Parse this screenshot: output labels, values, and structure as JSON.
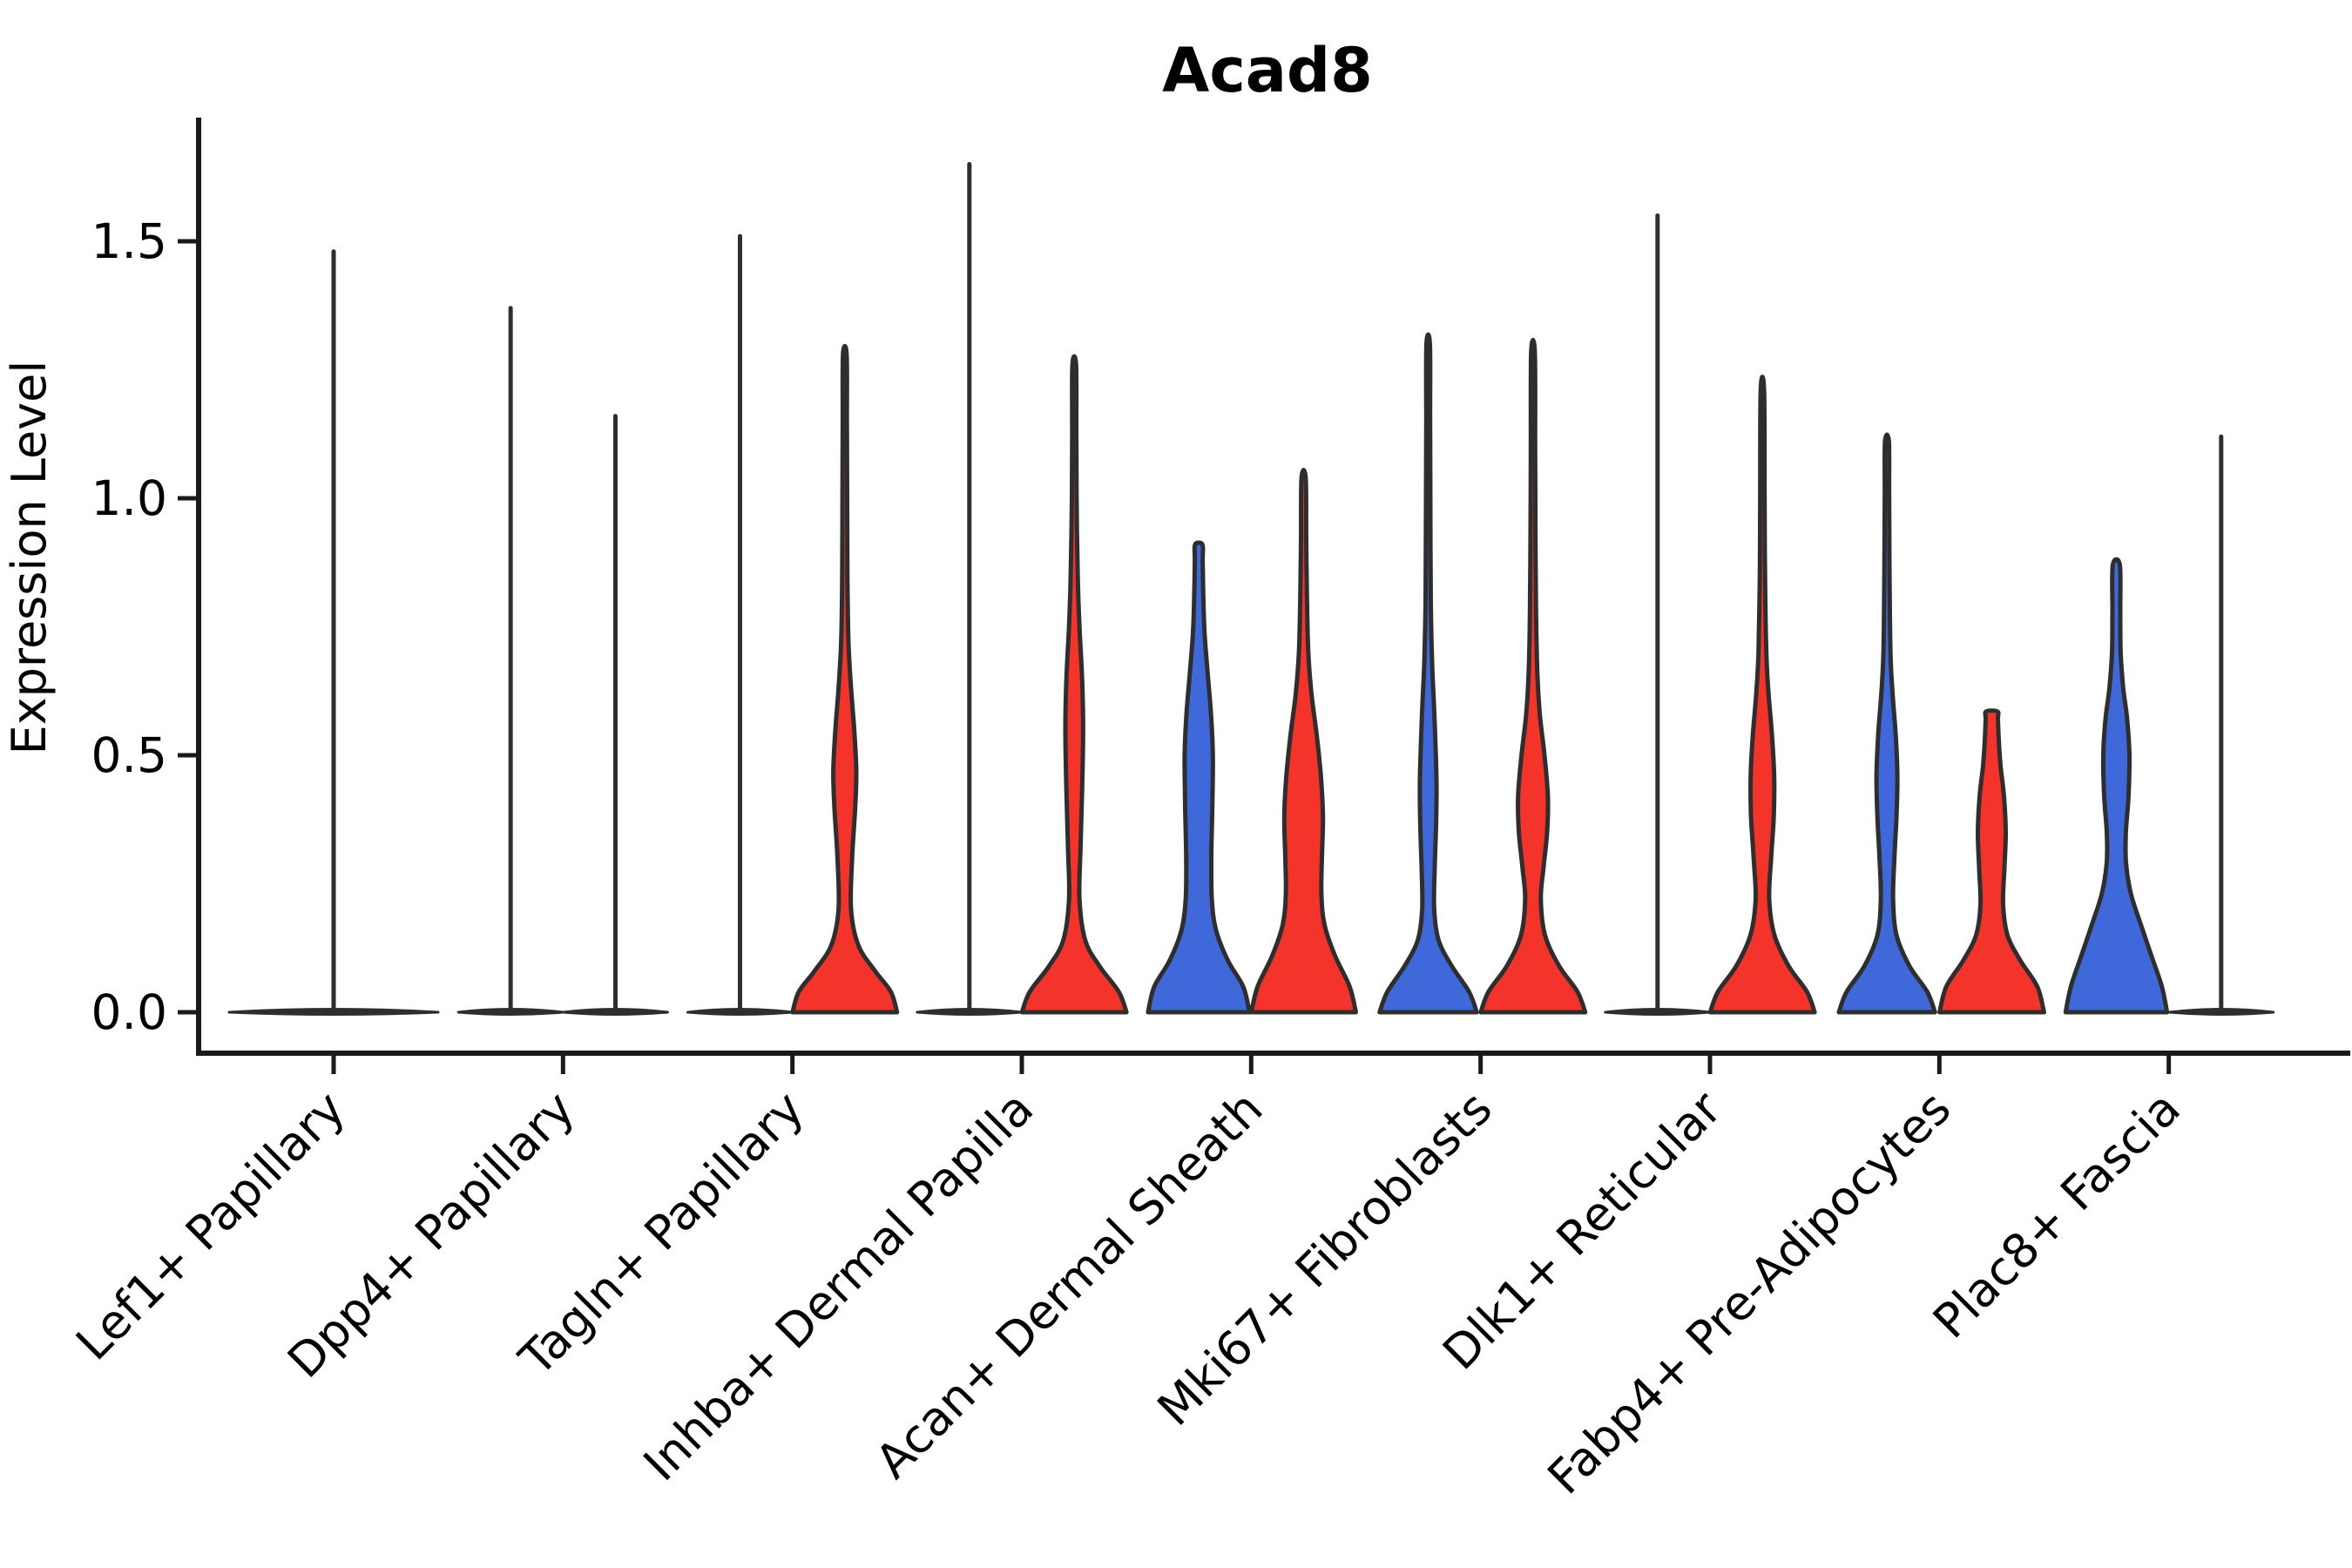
{
  "title": "Acad8",
  "y_axis": {
    "label": "Expression Level",
    "ticks": [
      "0.0",
      "0.5",
      "1.0",
      "1.5"
    ],
    "tick_values": [
      0.0,
      0.5,
      1.0,
      1.5
    ]
  },
  "colors": {
    "red": "#F4332B",
    "blue": "#3F69DB",
    "outline": "#2E2E2E",
    "axis": "#1A1A1A",
    "text": "#000000"
  },
  "chart_data": {
    "type": "violin",
    "title": "Acad8",
    "xlabel": "",
    "ylabel": "Expression Level",
    "ylim": [
      -0.08,
      1.75
    ],
    "grid": false,
    "legend_position": "none",
    "categories": [
      "Lef1+ Papillary",
      "Dpp4+ Papillary",
      "Tagln+ Papillary",
      "Inhba+ Dermal Papilla",
      "Acan+ Dermal Sheath",
      "Mki67+ Fibroblasts",
      "Dlk1+ Reticular",
      "Fabp4+ Pre-Adipocytes",
      "Plac8+ Fascia"
    ],
    "violins": [
      {
        "cat": 0,
        "side": "full",
        "fill": "flat",
        "max_expression": 1.48,
        "lens_halfwidth": 2.0
      },
      {
        "cat": 1,
        "side": "left",
        "fill": "flat",
        "max_expression": 1.37,
        "lens_halfwidth": 1.0
      },
      {
        "cat": 1,
        "side": "right",
        "fill": "flat",
        "max_expression": 1.16,
        "lens_halfwidth": 1.0
      },
      {
        "cat": 2,
        "side": "left",
        "fill": "flat",
        "max_expression": 1.51,
        "lens_halfwidth": 1.0
      },
      {
        "cat": 2,
        "side": "right",
        "fill": "red",
        "max_expression": 1.28,
        "profile": [
          [
            0,
            1.0
          ],
          [
            0.04,
            0.88
          ],
          [
            0.08,
            0.58
          ],
          [
            0.13,
            0.26
          ],
          [
            0.2,
            0.12
          ],
          [
            0.3,
            0.14
          ],
          [
            0.4,
            0.2
          ],
          [
            0.47,
            0.22
          ],
          [
            0.55,
            0.18
          ],
          [
            0.63,
            0.12
          ],
          [
            0.72,
            0.07
          ],
          [
            0.85,
            0.05
          ],
          [
            1.0,
            0.045
          ],
          [
            1.15,
            0.04
          ],
          [
            1.28,
            0.035
          ]
        ]
      },
      {
        "cat": 3,
        "side": "left",
        "fill": "flat",
        "max_expression": 1.65,
        "lens_halfwidth": 1.0
      },
      {
        "cat": 3,
        "side": "right",
        "fill": "red",
        "max_expression": 1.26,
        "profile": [
          [
            0,
            1.0
          ],
          [
            0.04,
            0.85
          ],
          [
            0.09,
            0.48
          ],
          [
            0.14,
            0.21
          ],
          [
            0.22,
            0.1
          ],
          [
            0.32,
            0.12
          ],
          [
            0.43,
            0.15
          ],
          [
            0.55,
            0.17
          ],
          [
            0.65,
            0.15
          ],
          [
            0.75,
            0.1
          ],
          [
            0.85,
            0.067
          ],
          [
            1.0,
            0.045
          ],
          [
            1.13,
            0.04
          ],
          [
            1.26,
            0.035
          ]
        ]
      },
      {
        "cat": 4,
        "side": "left",
        "fill": "blue",
        "max_expression": 0.91,
        "profile": [
          [
            0,
            0.97
          ],
          [
            0.05,
            0.85
          ],
          [
            0.1,
            0.56
          ],
          [
            0.16,
            0.33
          ],
          [
            0.22,
            0.25
          ],
          [
            0.3,
            0.24
          ],
          [
            0.4,
            0.26
          ],
          [
            0.5,
            0.27
          ],
          [
            0.58,
            0.235
          ],
          [
            0.66,
            0.17
          ],
          [
            0.74,
            0.11
          ],
          [
            0.82,
            0.085
          ],
          [
            0.88,
            0.075
          ],
          [
            0.91,
            0.07
          ]
        ]
      },
      {
        "cat": 4,
        "side": "right",
        "fill": "red",
        "max_expression": 1.04,
        "profile": [
          [
            0,
            1.0
          ],
          [
            0.05,
            0.88
          ],
          [
            0.11,
            0.6
          ],
          [
            0.17,
            0.4
          ],
          [
            0.23,
            0.34
          ],
          [
            0.3,
            0.35
          ],
          [
            0.38,
            0.37
          ],
          [
            0.46,
            0.33
          ],
          [
            0.54,
            0.25
          ],
          [
            0.62,
            0.15
          ],
          [
            0.7,
            0.09
          ],
          [
            0.8,
            0.065
          ],
          [
            0.92,
            0.05
          ],
          [
            1.04,
            0.04
          ]
        ]
      },
      {
        "cat": 5,
        "side": "left",
        "fill": "blue",
        "max_expression": 1.3,
        "profile": [
          [
            0,
            0.93
          ],
          [
            0.04,
            0.78
          ],
          [
            0.09,
            0.45
          ],
          [
            0.14,
            0.2
          ],
          [
            0.2,
            0.115
          ],
          [
            0.28,
            0.125
          ],
          [
            0.36,
            0.15
          ],
          [
            0.44,
            0.16
          ],
          [
            0.52,
            0.14
          ],
          [
            0.6,
            0.11
          ],
          [
            0.68,
            0.075
          ],
          [
            0.8,
            0.05
          ],
          [
            1.0,
            0.042
          ],
          [
            1.15,
            0.037
          ],
          [
            1.3,
            0.033
          ]
        ]
      },
      {
        "cat": 5,
        "side": "right",
        "fill": "red",
        "max_expression": 1.285,
        "profile": [
          [
            0,
            1.0
          ],
          [
            0.04,
            0.85
          ],
          [
            0.09,
            0.5
          ],
          [
            0.15,
            0.23
          ],
          [
            0.22,
            0.15
          ],
          [
            0.28,
            0.2
          ],
          [
            0.35,
            0.27
          ],
          [
            0.42,
            0.285
          ],
          [
            0.5,
            0.22
          ],
          [
            0.58,
            0.13
          ],
          [
            0.66,
            0.083
          ],
          [
            0.78,
            0.058
          ],
          [
            0.95,
            0.047
          ],
          [
            1.1,
            0.042
          ],
          [
            1.285,
            0.035
          ]
        ]
      },
      {
        "cat": 6,
        "side": "left",
        "fill": "flat",
        "max_expression": 1.55,
        "lens_halfwidth": 1.0
      },
      {
        "cat": 6,
        "side": "right",
        "fill": "red",
        "max_expression": 1.21,
        "profile": [
          [
            0,
            1.0
          ],
          [
            0.04,
            0.85
          ],
          [
            0.09,
            0.5
          ],
          [
            0.15,
            0.23
          ],
          [
            0.22,
            0.13
          ],
          [
            0.3,
            0.167
          ],
          [
            0.38,
            0.217
          ],
          [
            0.46,
            0.225
          ],
          [
            0.54,
            0.183
          ],
          [
            0.62,
            0.117
          ],
          [
            0.7,
            0.075
          ],
          [
            0.85,
            0.05
          ],
          [
            1.0,
            0.042
          ],
          [
            1.21,
            0.033
          ]
        ]
      },
      {
        "cat": 7,
        "side": "left",
        "fill": "blue",
        "max_expression": 1.11,
        "profile": [
          [
            0,
            0.92
          ],
          [
            0.04,
            0.77
          ],
          [
            0.09,
            0.43
          ],
          [
            0.15,
            0.183
          ],
          [
            0.22,
            0.117
          ],
          [
            0.3,
            0.142
          ],
          [
            0.38,
            0.183
          ],
          [
            0.46,
            0.2
          ],
          [
            0.54,
            0.167
          ],
          [
            0.62,
            0.108
          ],
          [
            0.7,
            0.067
          ],
          [
            0.85,
            0.05
          ],
          [
            1.0,
            0.042
          ],
          [
            1.11,
            0.037
          ]
        ]
      },
      {
        "cat": 7,
        "side": "right",
        "fill": "red",
        "max_expression": 0.585,
        "profile": [
          [
            0,
            1.0
          ],
          [
            0.05,
            0.87
          ],
          [
            0.1,
            0.55
          ],
          [
            0.15,
            0.3
          ],
          [
            0.21,
            0.217
          ],
          [
            0.28,
            0.242
          ],
          [
            0.35,
            0.267
          ],
          [
            0.42,
            0.233
          ],
          [
            0.48,
            0.167
          ],
          [
            0.53,
            0.133
          ],
          [
            0.57,
            0.117
          ],
          [
            0.585,
            0.108
          ]
        ]
      },
      {
        "cat": 8,
        "side": "left",
        "fill": "blue",
        "max_expression": 0.87,
        "profile": [
          [
            0,
            0.97
          ],
          [
            0.05,
            0.87
          ],
          [
            0.11,
            0.67
          ],
          [
            0.17,
            0.47
          ],
          [
            0.23,
            0.28
          ],
          [
            0.29,
            0.185
          ],
          [
            0.35,
            0.183
          ],
          [
            0.42,
            0.233
          ],
          [
            0.5,
            0.25
          ],
          [
            0.57,
            0.208
          ],
          [
            0.63,
            0.133
          ],
          [
            0.7,
            0.083
          ],
          [
            0.78,
            0.075
          ],
          [
            0.87,
            0.067
          ]
        ]
      },
      {
        "cat": 8,
        "side": "right",
        "fill": "flat",
        "max_expression": 1.12,
        "lens_halfwidth": 1.0
      }
    ]
  }
}
